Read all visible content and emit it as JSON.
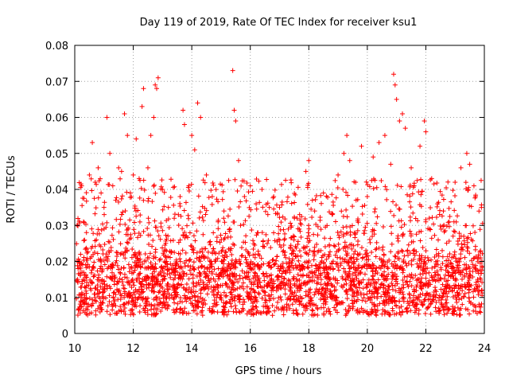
{
  "chart_data": {
    "type": "scatter",
    "title": "Day 119 of 2019, Rate Of TEC Index for receiver ksu1",
    "xlabel": "GPS time / hours",
    "ylabel": "ROTI / TECUs",
    "xlim": [
      10,
      24
    ],
    "ylim": [
      0,
      0.08
    ],
    "x_ticks": [
      "10",
      "12",
      "14",
      "16",
      "18",
      "20",
      "22",
      "24"
    ],
    "y_ticks": [
      "0",
      "0.01",
      "0.02",
      "0.03",
      "0.04",
      "0.05",
      "0.06",
      "0.07",
      "0.08"
    ],
    "grid": true,
    "marker": "+",
    "series": [
      {
        "name": "ROTI",
        "color": "#ff0000",
        "points": [
          [
            10.1,
            0.015
          ],
          [
            10.2,
            0.022
          ],
          [
            10.3,
            0.031
          ],
          [
            10.4,
            0.028
          ],
          [
            10.5,
            0.044
          ],
          [
            10.6,
            0.053
          ],
          [
            10.7,
            0.042
          ],
          [
            10.8,
            0.046
          ],
          [
            10.9,
            0.039
          ],
          [
            11.0,
            0.035
          ],
          [
            11.1,
            0.06
          ],
          [
            11.2,
            0.05
          ],
          [
            11.3,
            0.041
          ],
          [
            11.4,
            0.037
          ],
          [
            11.5,
            0.046
          ],
          [
            11.6,
            0.045
          ],
          [
            11.7,
            0.061
          ],
          [
            11.8,
            0.055
          ],
          [
            11.9,
            0.039
          ],
          [
            12.0,
            0.044
          ],
          [
            12.1,
            0.054
          ],
          [
            12.2,
            0.043
          ],
          [
            12.3,
            0.063
          ],
          [
            12.35,
            0.068
          ],
          [
            12.5,
            0.046
          ],
          [
            12.6,
            0.055
          ],
          [
            12.7,
            0.06
          ],
          [
            12.75,
            0.069
          ],
          [
            12.8,
            0.068
          ],
          [
            12.85,
            0.071
          ],
          [
            13.0,
            0.04
          ],
          [
            13.2,
            0.035
          ],
          [
            13.4,
            0.032
          ],
          [
            13.6,
            0.038
          ],
          [
            13.7,
            0.062
          ],
          [
            13.75,
            0.058
          ],
          [
            13.9,
            0.041
          ],
          [
            14.0,
            0.055
          ],
          [
            14.1,
            0.051
          ],
          [
            14.2,
            0.064
          ],
          [
            14.3,
            0.06
          ],
          [
            14.5,
            0.044
          ],
          [
            14.7,
            0.038
          ],
          [
            14.9,
            0.031
          ],
          [
            15.1,
            0.034
          ],
          [
            15.3,
            0.029
          ],
          [
            15.4,
            0.073
          ],
          [
            15.45,
            0.062
          ],
          [
            15.5,
            0.059
          ],
          [
            15.6,
            0.048
          ],
          [
            15.8,
            0.038
          ],
          [
            16.0,
            0.041
          ],
          [
            16.2,
            0.036
          ],
          [
            16.4,
            0.04
          ],
          [
            16.6,
            0.033
          ],
          [
            16.8,
            0.038
          ],
          [
            17.0,
            0.035
          ],
          [
            17.3,
            0.029
          ],
          [
            17.6,
            0.032
          ],
          [
            17.9,
            0.045
          ],
          [
            18.0,
            0.048
          ],
          [
            18.2,
            0.034
          ],
          [
            18.5,
            0.039
          ],
          [
            18.8,
            0.033
          ],
          [
            19.0,
            0.044
          ],
          [
            19.2,
            0.05
          ],
          [
            19.3,
            0.055
          ],
          [
            19.4,
            0.048
          ],
          [
            19.6,
            0.042
          ],
          [
            19.8,
            0.052
          ],
          [
            20.0,
            0.038
          ],
          [
            20.2,
            0.049
          ],
          [
            20.4,
            0.053
          ],
          [
            20.6,
            0.055
          ],
          [
            20.8,
            0.047
          ],
          [
            20.9,
            0.072
          ],
          [
            20.95,
            0.069
          ],
          [
            21.0,
            0.065
          ],
          [
            21.1,
            0.059
          ],
          [
            21.2,
            0.061
          ],
          [
            21.3,
            0.057
          ],
          [
            21.5,
            0.046
          ],
          [
            21.6,
            0.041
          ],
          [
            21.8,
            0.052
          ],
          [
            21.95,
            0.059
          ],
          [
            22.0,
            0.056
          ],
          [
            22.2,
            0.043
          ],
          [
            22.4,
            0.036
          ],
          [
            22.6,
            0.034
          ],
          [
            22.8,
            0.031
          ],
          [
            23.0,
            0.042
          ],
          [
            23.2,
            0.046
          ],
          [
            23.4,
            0.05
          ],
          [
            23.5,
            0.047
          ],
          [
            23.7,
            0.038
          ],
          [
            23.9,
            0.035
          ]
        ],
        "background_band": {
          "x_range": [
            10.05,
            23.95
          ],
          "typical_center": 0.012,
          "typical_min": 0.005,
          "typical_spread": 0.004
        }
      }
    ]
  }
}
